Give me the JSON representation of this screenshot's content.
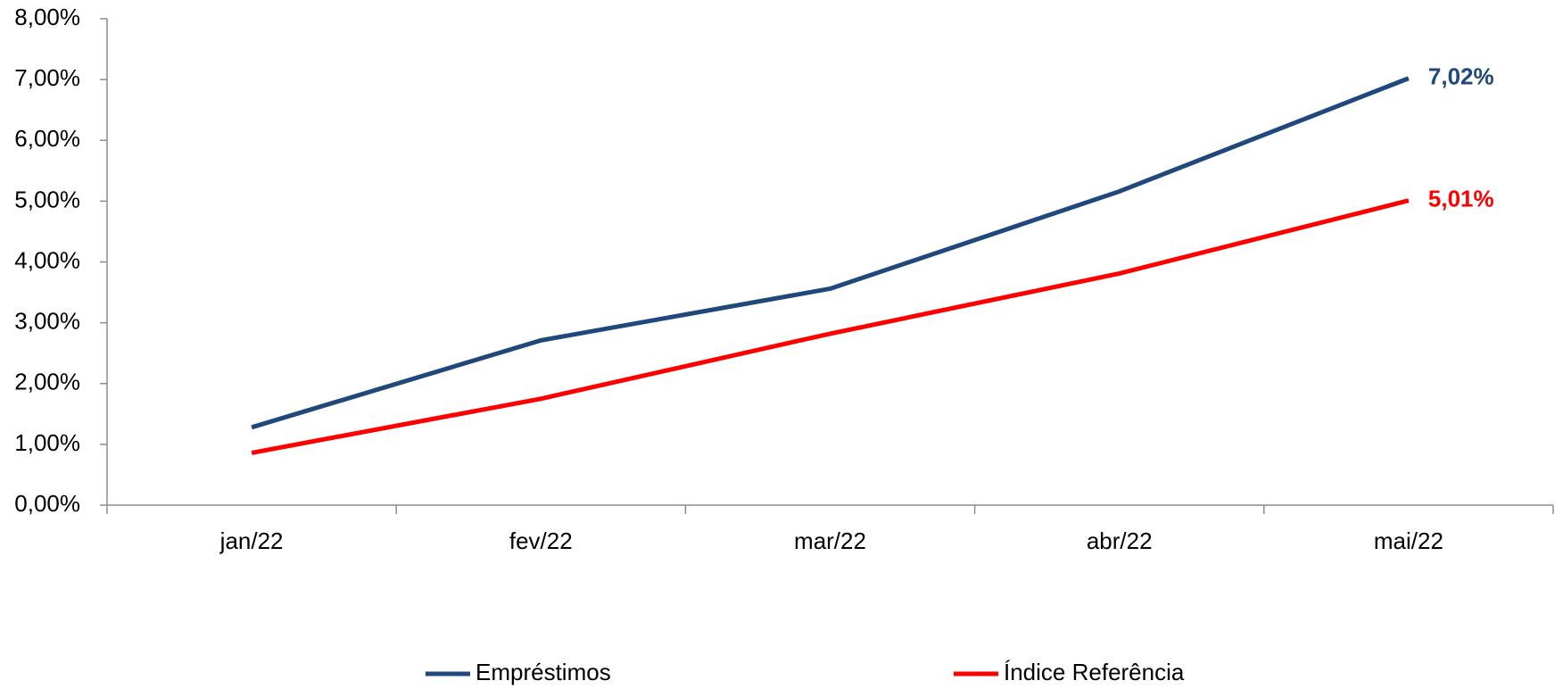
{
  "chart_data": {
    "type": "line",
    "categories": [
      "jan/22",
      "fev/22",
      "mar/22",
      "abr/22",
      "mai/22"
    ],
    "series": [
      {
        "name": "Empréstimos",
        "color": "#1f497d",
        "values": [
          1.28,
          2.71,
          3.56,
          5.16,
          7.02
        ],
        "value_labels": [
          null,
          null,
          null,
          null,
          "7,02%"
        ]
      },
      {
        "name": "Índice Referência",
        "color": "#ff0000",
        "values": [
          0.86,
          1.75,
          2.82,
          3.81,
          5.01
        ],
        "value_labels": [
          null,
          null,
          null,
          null,
          "5,01%"
        ]
      }
    ],
    "ylim": [
      0,
      8
    ],
    "yticks": [
      {
        "value": 0,
        "label": "0,00%"
      },
      {
        "value": 1,
        "label": "1,00%"
      },
      {
        "value": 2,
        "label": "2,00%"
      },
      {
        "value": 3,
        "label": "3,00%"
      },
      {
        "value": 4,
        "label": "4,00%"
      },
      {
        "value": 5,
        "label": "5,00%"
      },
      {
        "value": 6,
        "label": "6,00%"
      },
      {
        "value": 7,
        "label": "7,00%"
      },
      {
        "value": 8,
        "label": "8,00%"
      }
    ],
    "grid": false,
    "legend": "bottom"
  }
}
